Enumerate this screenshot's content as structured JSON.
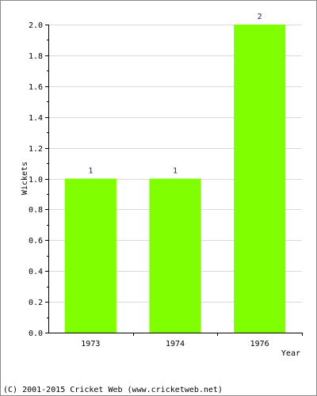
{
  "chart_data": {
    "type": "bar",
    "categories": [
      "1973",
      "1974",
      "1976"
    ],
    "values": [
      1,
      1,
      2
    ],
    "data_labels": [
      "1",
      "1",
      "2"
    ],
    "xlabel": "Year",
    "ylabel": "Wickets",
    "ylim": [
      0,
      2.0
    ],
    "y_ticks": [
      "0.0",
      "0.2",
      "0.4",
      "0.6",
      "0.8",
      "1.0",
      "1.2",
      "1.4",
      "1.6",
      "1.8",
      "2.0"
    ],
    "grid": true,
    "bar_color": "#80ff00",
    "grid_color": "#d9d9d9"
  },
  "footer": {
    "copyright": "(C) 2001-2015 Cricket Web (www.cricketweb.net)"
  }
}
